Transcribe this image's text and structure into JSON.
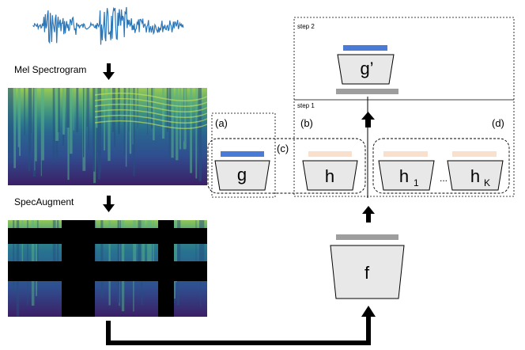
{
  "labels": {
    "mel_spectrogram": "Mel Spectrogram",
    "spec_augment": "SpecAugment",
    "step1": "step 1",
    "step2": "step 2",
    "a": "(a)",
    "b": "(b)",
    "c": "(c)",
    "d": "(d)"
  },
  "blocks": {
    "f": "f",
    "g": "g",
    "g_prime": "g’",
    "h": "h",
    "h1_base": "h",
    "h1_sub": "1",
    "hk_base": "h",
    "hk_sub": "K",
    "ellipsis": "..."
  },
  "colors": {
    "blue_bar": "#4a7bd6",
    "peach_bar": "#f8e0cd",
    "gray_bar": "#9e9e9e",
    "block_fill": "#e8e8e8",
    "waveform": "#2a76b8",
    "spec_dark": "#3b1f66",
    "spec_mid": "#2a8c8c",
    "spec_bright": "#b8df3a"
  },
  "icons": [
    "down-arrow-icon",
    "up-arrow-icon",
    "elbow-arrow-icon"
  ]
}
